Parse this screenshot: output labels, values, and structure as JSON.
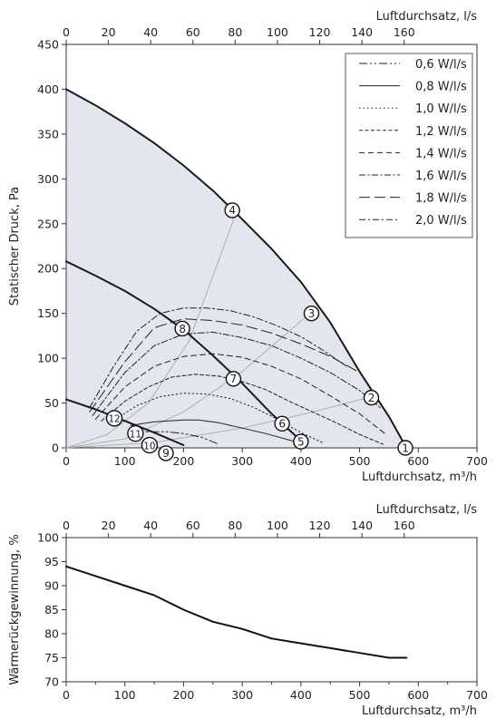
{
  "chart_data": [
    {
      "type": "line",
      "xlabel": "Luftdurchsatz, m³/h",
      "xlabel_top": "Luftdurchsatz, l/s",
      "ylabel": "Statischer Druck, Pa",
      "xlim": [
        0,
        700
      ],
      "ylim": [
        0,
        450
      ],
      "xlim_top": [
        0,
        170
      ],
      "x_ticks": [
        "0",
        "100",
        "200",
        "300",
        "400",
        "500",
        "600",
        "700"
      ],
      "x_ticks_top": [
        "0",
        "20",
        "40",
        "60",
        "80",
        "100",
        "120",
        "140",
        "160"
      ],
      "y_ticks": [
        "0",
        "50",
        "100",
        "150",
        "200",
        "250",
        "300",
        "350",
        "400",
        "450"
      ],
      "legend_position": "top-right",
      "legend": [
        "0,6 W/l/s",
        "0,8 W/l/s",
        "1,0 W/l/s",
        "1,2 W/l/s",
        "1,4 W/l/s",
        "1,6 W/l/s",
        "1,8 W/l/s",
        "2,0 W/l/s"
      ],
      "colors": {
        "area": "#e3e6ee",
        "curve": "#1a1a1a",
        "system_line": "#a8a8a8"
      },
      "envelope": {
        "x": [
          0,
          50,
          100,
          150,
          200,
          250,
          300,
          350,
          400,
          450,
          500,
          550,
          580
        ],
        "y": [
          400,
          382,
          362,
          340,
          315,
          287,
          255,
          222,
          185,
          140,
          85,
          35,
          0
        ]
      },
      "mid_curve": {
        "x": [
          0,
          50,
          100,
          150,
          200,
          250,
          300,
          350,
          400
        ],
        "y": [
          208,
          192,
          175,
          155,
          132,
          103,
          72,
          38,
          8
        ]
      },
      "low_curve": {
        "x": [
          0,
          50,
          100,
          150,
          200
        ],
        "y": [
          54,
          43,
          30,
          17,
          3
        ]
      },
      "system_lines": [
        {
          "x": [
            0,
            70,
            140,
            210,
            290
          ],
          "y": [
            0,
            15,
            50,
            120,
            263
          ]
        },
        {
          "x": [
            0,
            100,
            200,
            300,
            415
          ],
          "y": [
            0,
            10,
            40,
            85,
            150
          ]
        },
        {
          "x": [
            0,
            150,
            300,
            420,
            520
          ],
          "y": [
            0,
            6,
            22,
            40,
            57
          ]
        }
      ],
      "series": [
        {
          "name": "0,6 W/l/s",
          "x": [
            110,
            140,
            170,
            200,
            230,
            260
          ],
          "y": [
            18,
            18,
            18,
            16,
            12,
            4
          ]
        },
        {
          "name": "0,8 W/l/s",
          "x": [
            110,
            150,
            200,
            225,
            260,
            300,
            340,
            390
          ],
          "y": [
            25,
            29,
            31,
            31,
            28,
            22,
            16,
            7
          ]
        },
        {
          "name": "1,0 W/l/s",
          "x": [
            80,
            120,
            160,
            200,
            240,
            280,
            320,
            360,
            400,
            440
          ],
          "y": [
            30,
            47,
            57,
            61,
            60,
            55,
            45,
            32,
            17,
            5
          ]
        },
        {
          "name": "1,2 W/l/s",
          "x": [
            60,
            100,
            140,
            180,
            220,
            260,
            300,
            340,
            380,
            420,
            460,
            500,
            540
          ],
          "y": [
            30,
            52,
            68,
            79,
            82,
            80,
            74,
            65,
            52,
            40,
            28,
            15,
            4
          ]
        },
        {
          "name": "1,4 W/l/s",
          "x": [
            50,
            100,
            150,
            200,
            250,
            300,
            350,
            400,
            450,
            500,
            545
          ],
          "y": [
            32,
            68,
            91,
            102,
            105,
            101,
            91,
            77,
            58,
            38,
            15
          ]
        },
        {
          "name": "1,6 W/l/s",
          "x": [
            45,
            100,
            150,
            200,
            250,
            300,
            350,
            400,
            450,
            500,
            535
          ],
          "y": [
            36,
            84,
            114,
            127,
            129,
            123,
            114,
            100,
            84,
            64,
            45
          ]
        },
        {
          "name": "1,8 W/l/s",
          "x": [
            40,
            100,
            150,
            200,
            250,
            300,
            350,
            400,
            450,
            500
          ],
          "y": [
            40,
            96,
            134,
            144,
            142,
            137,
            128,
            116,
            102,
            84
          ]
        },
        {
          "name": "2,0 W/l/s",
          "x": [
            40,
            80,
            120,
            160,
            200,
            240,
            280,
            320,
            360,
            400,
            440,
            480
          ],
          "y": [
            45,
            90,
            130,
            150,
            156,
            156,
            153,
            146,
            136,
            124,
            108,
            90
          ]
        }
      ],
      "points": [
        {
          "label": "1",
          "x": 578,
          "y": 0
        },
        {
          "label": "2",
          "x": 520,
          "y": 56
        },
        {
          "label": "3",
          "x": 418,
          "y": 150
        },
        {
          "label": "4",
          "x": 283,
          "y": 265
        },
        {
          "label": "5",
          "x": 400,
          "y": 7
        },
        {
          "label": "6",
          "x": 368,
          "y": 27
        },
        {
          "label": "7",
          "x": 285,
          "y": 77
        },
        {
          "label": "8",
          "x": 198,
          "y": 133
        },
        {
          "label": "9",
          "x": 170,
          "y": -6
        },
        {
          "label": "10",
          "x": 142,
          "y": 3
        },
        {
          "label": "11",
          "x": 118,
          "y": 16
        },
        {
          "label": "12",
          "x": 82,
          "y": 33
        }
      ]
    },
    {
      "type": "line",
      "xlabel": "Luftdurchsatz, m³/h",
      "xlabel_top": "Luftdurchsatz, l/s",
      "ylabel": "Wärmerückgewinnung, %",
      "xlim": [
        0,
        700
      ],
      "ylim": [
        70,
        100
      ],
      "xlim_top": [
        0,
        170
      ],
      "x_ticks": [
        "0",
        "100",
        "200",
        "300",
        "400",
        "500",
        "600",
        "700"
      ],
      "x_ticks_top": [
        "0",
        "20",
        "40",
        "60",
        "80",
        "100",
        "120",
        "140",
        "160"
      ],
      "y_ticks": [
        "70",
        "75",
        "80",
        "85",
        "90",
        "95",
        "100"
      ],
      "series": [
        {
          "x": [
            0,
            50,
            100,
            150,
            200,
            250,
            300,
            350,
            400,
            450,
            500,
            550,
            580
          ],
          "y": [
            94,
            92,
            90,
            88,
            85,
            82.5,
            81,
            79,
            78,
            77,
            76,
            75,
            75
          ]
        }
      ]
    }
  ]
}
